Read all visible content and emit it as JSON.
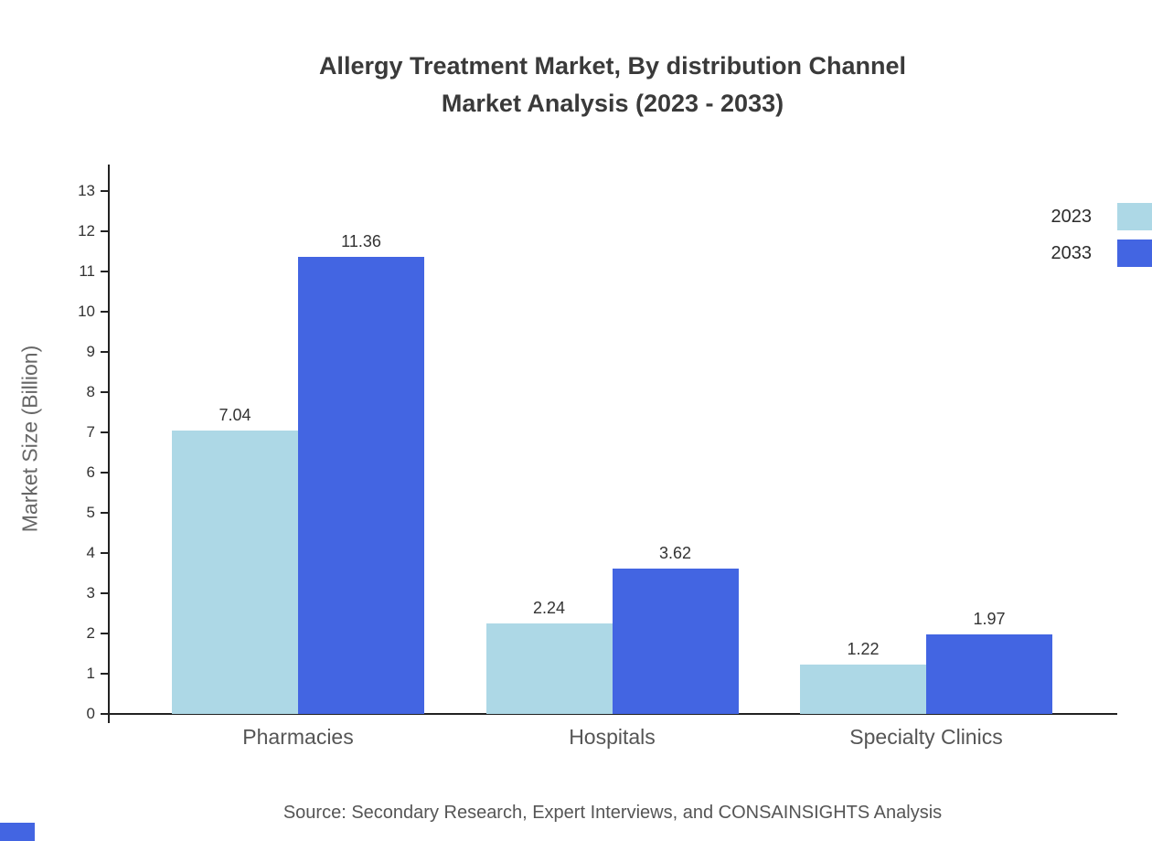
{
  "chart": {
    "title_line1": "Allergy Treatment Market, By distribution Channel",
    "title_line2": "Market Analysis (2023 - 2033)",
    "ylabel": "Market Size (Billion)",
    "source": "Source: Secondary Research, Expert Interviews, and CONSAINSIGHTS Analysis"
  },
  "chart_data": {
    "type": "bar",
    "title": "Allergy Treatment Market, By distribution Channel Market Analysis (2023 - 2033)",
    "categories": [
      "Pharmacies",
      "Hospitals",
      "Specialty Clinics"
    ],
    "series": [
      {
        "name": "2023",
        "color": "#ADD8E6",
        "values": [
          7.04,
          2.24,
          1.22
        ]
      },
      {
        "name": "2033",
        "color": "#4365E2",
        "values": [
          11.36,
          3.62,
          1.97
        ]
      }
    ],
    "value_labels": [
      [
        "7.04",
        "2.24",
        "1.22"
      ],
      [
        "11.36",
        "3.62",
        "1.97"
      ]
    ],
    "xlabel": "",
    "ylabel": "Market Size (Billion)",
    "ylim": [
      0,
      13
    ],
    "ytick_step": 1,
    "grid": false,
    "legend_position": "top-right"
  }
}
